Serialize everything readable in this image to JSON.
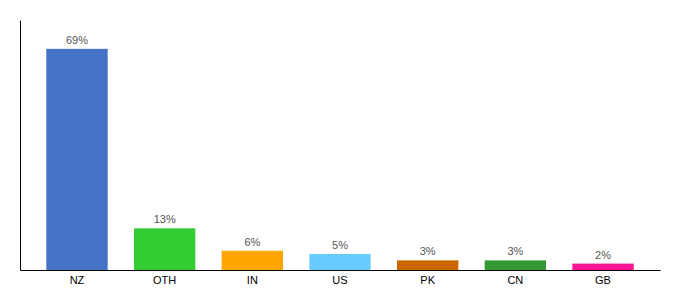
{
  "chart_data": {
    "type": "bar",
    "categories": [
      "NZ",
      "OTH",
      "IN",
      "US",
      "PK",
      "CN",
      "GB"
    ],
    "values": [
      69,
      13,
      6,
      5,
      3,
      3,
      2
    ],
    "value_labels": [
      "69%",
      "13%",
      "6%",
      "5%",
      "3%",
      "3%",
      "2%"
    ],
    "colors": [
      "#4472C4",
      "#33CC33",
      "#FFA500",
      "#66CCFF",
      "#CC6600",
      "#339933",
      "#FF1493"
    ],
    "ylim": [
      0,
      78
    ],
    "yticks": [],
    "data_labels": true,
    "tick_labels": "x"
  }
}
